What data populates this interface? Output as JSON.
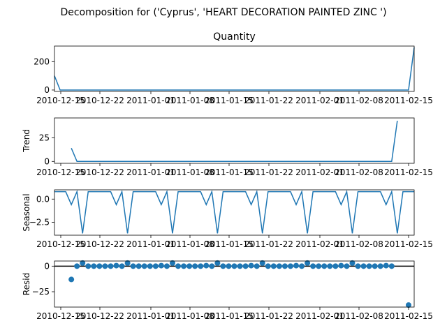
{
  "chart_data": {
    "type": "line",
    "title": "Decomposition for ('Cyprus', 'HEART DECORATION PAINTED ZINC ')",
    "x_tick_labels": [
      "2010-12-15",
      "2010-12-22",
      "2011-01-01",
      "2011-01-08",
      "2011-01-15",
      "2011-01-22",
      "2011-02-01",
      "2011-02-08",
      "2011-02-15"
    ],
    "color": "#1f77b4",
    "panels": [
      {
        "name": "observed",
        "title": "Quantity",
        "ylabel": "",
        "kind": "line",
        "ylim": [
          -10,
          310
        ],
        "yticks": [
          0,
          200
        ],
        "values": [
          100,
          0,
          0,
          0,
          0,
          0,
          0,
          0,
          0,
          0,
          0,
          0,
          0,
          0,
          0,
          0,
          0,
          0,
          0,
          0,
          0,
          0,
          0,
          0,
          0,
          0,
          0,
          0,
          0,
          0,
          0,
          0,
          0,
          0,
          0,
          0,
          0,
          0,
          0,
          0,
          0,
          0,
          0,
          0,
          0,
          0,
          0,
          0,
          0,
          0,
          0,
          0,
          0,
          0,
          0,
          0,
          0,
          0,
          0,
          0,
          0,
          0,
          0,
          0,
          300
        ]
      },
      {
        "name": "trend",
        "title": "",
        "ylabel": "Trend",
        "kind": "line",
        "ylim": [
          -2,
          46
        ],
        "yticks": [
          0,
          25
        ],
        "values": [
          null,
          null,
          null,
          14,
          0,
          0,
          0,
          0,
          0,
          0,
          0,
          0,
          0,
          0,
          0,
          0,
          0,
          0,
          0,
          0,
          0,
          0,
          0,
          0,
          0,
          0,
          0,
          0,
          0,
          0,
          0,
          0,
          0,
          0,
          0,
          0,
          0,
          0,
          0,
          0,
          0,
          0,
          0,
          0,
          0,
          0,
          0,
          0,
          0,
          0,
          0,
          0,
          0,
          0,
          0,
          0,
          0,
          0,
          0,
          0,
          0,
          43,
          null,
          null,
          null
        ]
      },
      {
        "name": "seasonal",
        "title": "",
        "ylabel": "Seasonal",
        "kind": "line",
        "ylim": [
          -3.9,
          1.0
        ],
        "yticks": [
          0.0,
          -2.5
        ],
        "tick_labels": [
          "0.0",
          "−2.5"
        ],
        "values": [
          0.8,
          0.8,
          0.8,
          -0.6,
          0.8,
          -3.7,
          0.8,
          0.8,
          0.8,
          0.8,
          0.8,
          -0.6,
          0.8,
          -3.7,
          0.8,
          0.8,
          0.8,
          0.8,
          0.8,
          -0.6,
          0.8,
          -3.7,
          0.8,
          0.8,
          0.8,
          0.8,
          0.8,
          -0.6,
          0.8,
          -3.7,
          0.8,
          0.8,
          0.8,
          0.8,
          0.8,
          -0.6,
          0.8,
          -3.7,
          0.8,
          0.8,
          0.8,
          0.8,
          0.8,
          -0.6,
          0.8,
          -3.7,
          0.8,
          0.8,
          0.8,
          0.8,
          0.8,
          -0.6,
          0.8,
          -3.7,
          0.8,
          0.8,
          0.8,
          0.8,
          0.8,
          -0.6,
          0.8,
          -3.7,
          0.8,
          0.8,
          0.8
        ]
      },
      {
        "name": "resid",
        "title": "",
        "ylabel": "Resid",
        "kind": "scatter",
        "ylim": [
          -40,
          5
        ],
        "yticks": [
          0,
          -25
        ],
        "tick_labels": [
          "0",
          "−25"
        ],
        "values": [
          null,
          null,
          null,
          -13,
          0,
          3,
          0,
          0,
          0,
          0,
          0,
          0.5,
          0,
          3,
          0,
          0,
          0,
          0,
          0,
          0.5,
          0,
          3,
          0,
          0,
          0,
          0,
          0,
          0.5,
          0,
          3,
          0,
          0,
          0,
          0,
          0,
          0.5,
          0,
          3,
          0,
          0,
          0,
          0,
          0,
          0.5,
          0,
          3,
          0,
          0,
          0,
          0,
          0,
          0.5,
          0,
          3,
          0,
          0,
          0,
          0,
          0,
          0.5,
          0,
          null,
          null,
          -38,
          null
        ]
      }
    ]
  }
}
